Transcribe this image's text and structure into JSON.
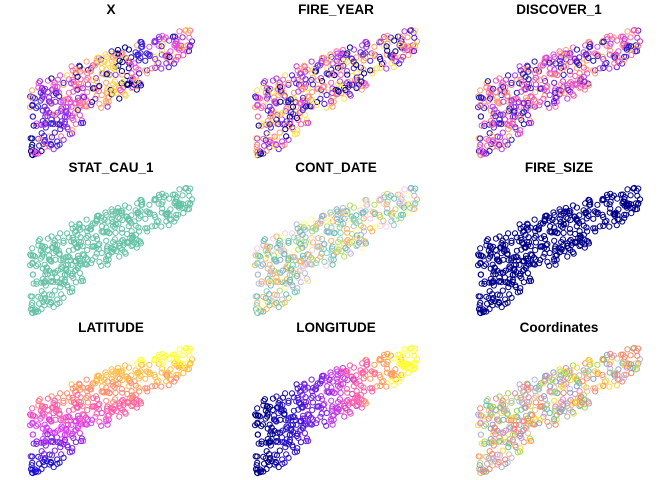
{
  "chart_data": {
    "type": "scatter",
    "layout": "3x3 small multiples",
    "panels": [
      {
        "title": "X",
        "palette": [
          "#00008b",
          "#3d1ed9",
          "#8f2bea",
          "#e44ad8",
          "#ff6fa0",
          "#ffa36b",
          "#ffd24a"
        ],
        "mode": "x-blocks"
      },
      {
        "title": "FIRE_YEAR",
        "palette": [
          "#00008b",
          "#4b1fe0",
          "#b03ae6",
          "#ff5fb0",
          "#ff9a6e",
          "#ffe14a"
        ],
        "mode": "random"
      },
      {
        "title": "DISCOVER_1",
        "palette": [
          "#6a16e6",
          "#b53aeb",
          "#e84fc9",
          "#ff6fa0",
          "#ffa36b",
          "#1b1bb0"
        ],
        "mode": "random"
      },
      {
        "title": "STAT_CAU_1",
        "palette": [
          "#66c2a5"
        ],
        "mode": "single"
      },
      {
        "title": "CONT_DATE",
        "palette": [
          "#66c2a5",
          "#8dd3c7",
          "#b3de69",
          "#ffff99",
          "#fccde5",
          "#bebada",
          "#80b1d3",
          "#fdb462"
        ],
        "mode": "random"
      },
      {
        "title": "FIRE_SIZE",
        "palette": [
          "#00008b"
        ],
        "mode": "single"
      },
      {
        "title": "LATITUDE",
        "palette": [
          "#1f10d0",
          "#7a1fe8",
          "#d83ef0",
          "#ff5fa8",
          "#ff8c74",
          "#ffbe4a",
          "#ffff33"
        ],
        "mode": "y-gradient"
      },
      {
        "title": "LONGITUDE",
        "palette": [
          "#00008b",
          "#2a12c8",
          "#6f20e6",
          "#c23be8",
          "#ff5fa8",
          "#ff9e5e",
          "#ffff33"
        ],
        "mode": "x-gradient"
      },
      {
        "title": "Coordinates",
        "palette": [
          "#66c2a5",
          "#fc8d62",
          "#8da0cb",
          "#e78ac3",
          "#a6d854",
          "#ffd92f",
          "#e5c494",
          "#b3b3b3",
          "#bebada",
          "#fb8072"
        ],
        "mode": "random"
      }
    ],
    "xlabel": "",
    "ylabel": "",
    "grid": false,
    "legend": "none"
  }
}
